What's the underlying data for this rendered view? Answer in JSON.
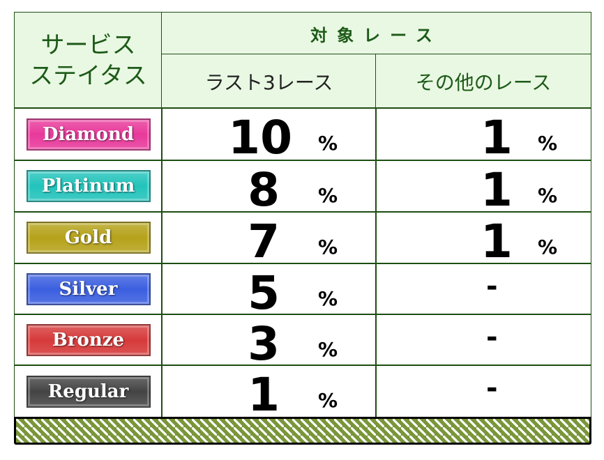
{
  "header": {
    "status_title_line1": "サービス",
    "status_title_line2": "ステイタス",
    "group_title": "対象レース",
    "col1": "ラスト3レース",
    "col2": "その他のレース"
  },
  "rows": [
    {
      "status": "Diamond",
      "color": "#e8399b",
      "last3": "10",
      "last3_unit": "%",
      "other": "1",
      "other_unit": "%"
    },
    {
      "status": "Platinum",
      "color": "#22c3bb",
      "last3": "8",
      "last3_unit": "%",
      "other": "1",
      "other_unit": "%"
    },
    {
      "status": "Gold",
      "color": "#b5a21a",
      "last3": "7",
      "last3_unit": "%",
      "other": "1",
      "other_unit": "%"
    },
    {
      "status": "Silver",
      "color": "#3b5fe0",
      "last3": "5",
      "last3_unit": "%",
      "other": "-",
      "other_unit": ""
    },
    {
      "status": "Bronze",
      "color": "#d63a3a",
      "last3": "3",
      "last3_unit": "%",
      "other": "-",
      "other_unit": ""
    },
    {
      "status": "Regular",
      "color": "#444444",
      "last3": "1",
      "last3_unit": "%",
      "other": "-",
      "other_unit": ""
    }
  ],
  "colors": {
    "border": "#1d4d12",
    "header_bg": "#e9f8e3",
    "header_text": "#1d5a18",
    "footer": "#7a963a"
  }
}
